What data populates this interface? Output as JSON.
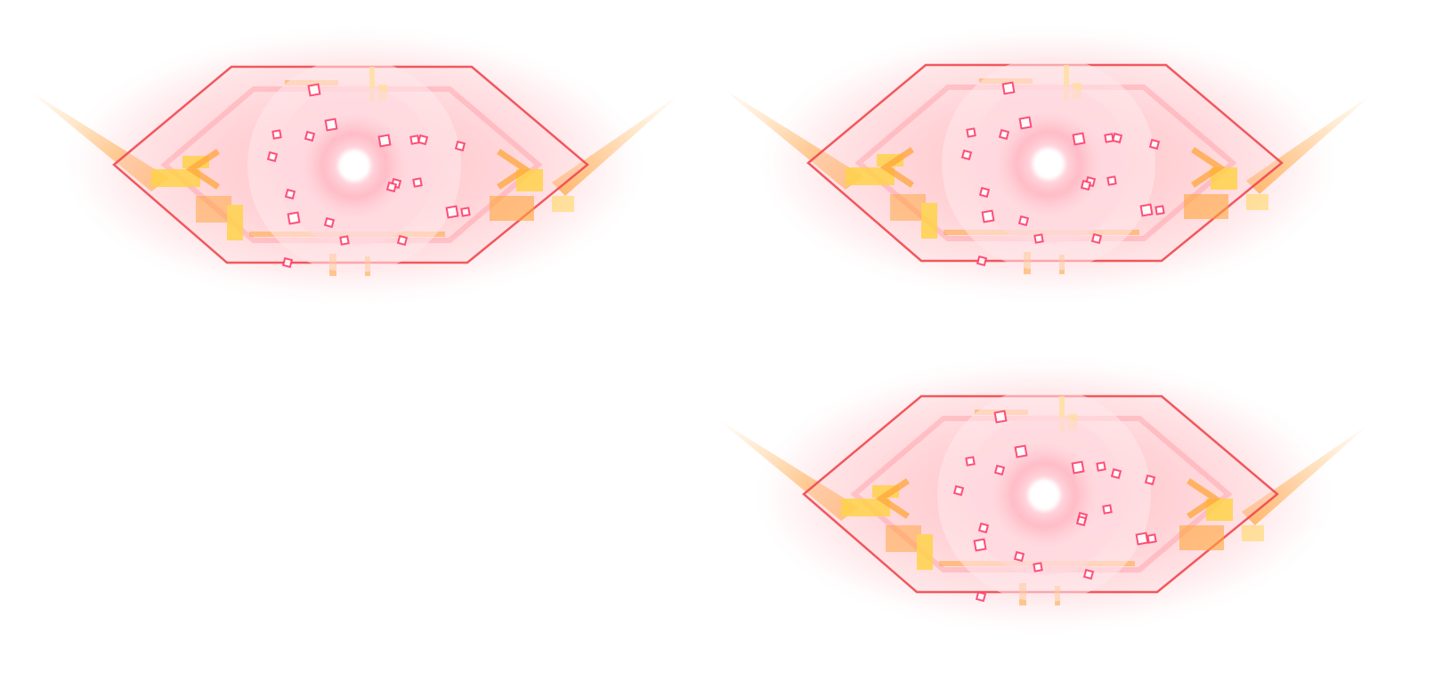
{
  "sprites": [
    {
      "name": "glowing-eye-frame-1",
      "icon": "glowing-eye-icon"
    },
    {
      "name": "glowing-eye-frame-2",
      "icon": "glowing-eye-icon"
    },
    {
      "name": "glowing-eye-frame-3",
      "icon": "glowing-eye-icon"
    }
  ],
  "colors": {
    "background": "#ffffff",
    "glow": "#ff6f7d",
    "frame_stroke": "#f0484f",
    "accent_orange": "#ffa53a",
    "accent_yellow": "#ffd24a",
    "sparkle": "#ff3f6c",
    "core": "#ffffff"
  }
}
